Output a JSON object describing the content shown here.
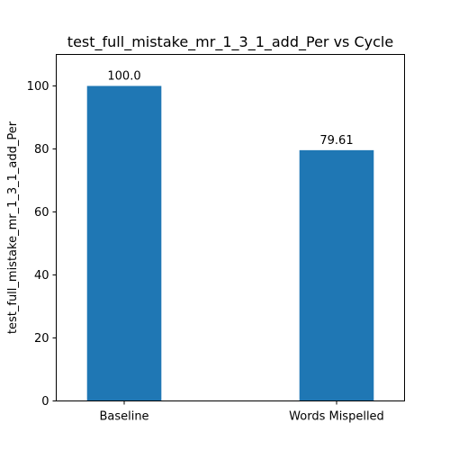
{
  "chart_data": {
    "type": "bar",
    "title": "test_full_mistake_mr_1_3_1_add_Per vs Cycle",
    "xlabel": "",
    "ylabel": "test_full_mistake_mr_1_3_1_add_Per",
    "categories": [
      "Baseline",
      "Words Mispelled"
    ],
    "values": [
      100.0,
      79.61
    ],
    "data_labels": [
      "100.0",
      "79.61"
    ],
    "ylim": [
      0,
      110
    ],
    "yticks": [
      0,
      20,
      40,
      60,
      80,
      100
    ],
    "bar_color": "#1f77b4",
    "grid": false,
    "legend": "none"
  }
}
